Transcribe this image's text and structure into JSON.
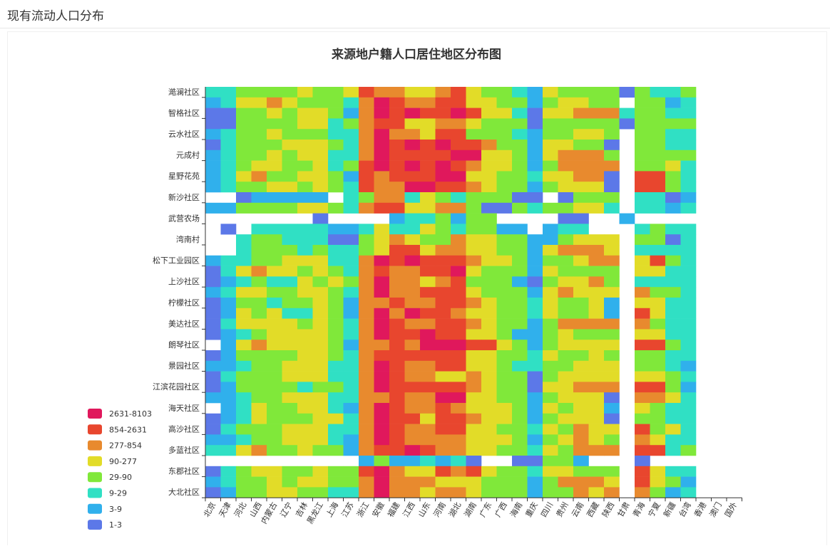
{
  "page": {
    "header_title": "现有流动人口分布"
  },
  "chart_data": {
    "type": "heatmap",
    "title": "来源地户籍人口居住地区分布图",
    "x_categories": [
      "北京",
      "天津",
      "河北",
      "山西",
      "内蒙古",
      "辽宁",
      "吉林",
      "黑龙江",
      "上海",
      "江苏",
      "浙江",
      "安徽",
      "福建",
      "江西",
      "山东",
      "河南",
      "湖北",
      "湖南",
      "广东",
      "广西",
      "海南",
      "重庆",
      "四川",
      "贵州",
      "云南",
      "西藏",
      "陕西",
      "甘肃",
      "青海",
      "宁夏",
      "新疆",
      "台湾",
      "香港",
      "澳门",
      "国外"
    ],
    "y_tick_labels": [
      "澔澜社区",
      "智格社区",
      "云水社区",
      "元成村",
      "星野花苑",
      "新沙社区",
      "武营农场",
      "湾南村",
      "松下工业园区",
      "上沙社区",
      "柠檬社区",
      "美达社区",
      "朗琴社区",
      "景园社区",
      "江滨花园社区",
      "海天社区",
      "高沙社区",
      "多蓝社区",
      "东郡社区",
      "大北社区"
    ],
    "row_count": 39,
    "legend": [
      {
        "label": "2631-8103",
        "color": "#e0185c"
      },
      {
        "label": "854-2631",
        "color": "#e8462e"
      },
      {
        "label": "277-854",
        "color": "#e88a2e"
      },
      {
        "label": "90-277",
        "color": "#e2dc28"
      },
      {
        "label": "29-90",
        "color": "#80e83a"
      },
      {
        "label": "9-29",
        "color": "#30e0c4"
      },
      {
        "label": "3-9",
        "color": "#30b0ec"
      },
      {
        "label": "1-3",
        "color": "#5c78e8"
      }
    ],
    "level_encoding": "cells: rows top-to-bottom, one character per x category; 0 = empty, 1 = 1-3, 2 = 3-9, 3 = 9-29, 4 = 29-90, 5 = 90-277, 6 = 277-854, 7 = 854-2631, 8 = 2631-8103",
    "cells": [
      "33444454457665567544325444414334000",
      "23556544436876677554424554404423000",
      "11445455426878778755315566634433000",
      "11444455346775566544414444414444000",
      "23445444336866577444324455404433000",
      "13444555436878787764425544104433000",
      "23445455336877778855425666404444000",
      "23455445347878787655424666604453000",
      "23564455427677788554435566107743000",
      "23445545437668877654424555107743000",
      "00122222034663543444110144403312000",
      "22444455436775566411434455303323000",
      "00000001000023342440000110020000000",
      "01033333223533543442202330003433000",
      "00344333114565446554422455504413000",
      "00344434334577566554425666503333000",
      "23344555336878777655424456605743000",
      "13565545436766778544425444405533000",
      "12343354546866567444214556403333000",
      "23554455436866777544425655506443000",
      "12443445426676677654435445205533000",
      "12545335426868776554435445207533000",
      "13555545436876677654424666606433000",
      "12345555436877877554224544405533000",
      "02565555426676888775424555507743000",
      "12444455436777777554435445404433000",
      "22344555336876677554334455504432000",
      "13444555336876655654414555505543000",
      "12444434436877777654415566607742000",
      "22344555336676688554424555106653000",
      "02354455326876676555425455205433000",
      "12354445536877577655424555104433000",
      "13444555336876677554435465507453000",
      "22344555326876666555424565406533000",
      "33564454426778766554435466607734000",
      "00000000002422323100114420001000000",
      "13455445447865576754435544407533000",
      "23445455446866655544424666507542000",
      "12445544336866566544424465606423000"
    ]
  }
}
